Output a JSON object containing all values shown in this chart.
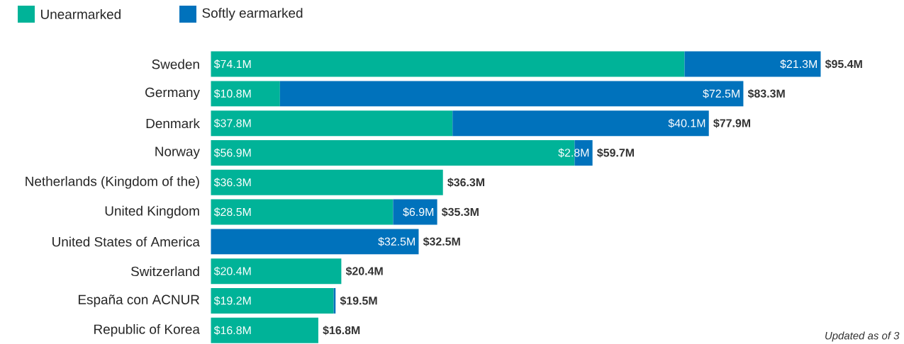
{
  "chart_data": {
    "type": "bar",
    "orientation": "horizontal",
    "stacked": true,
    "legend": "top left",
    "categories": [
      "Sweden",
      "Germany",
      "Denmark",
      "Norway",
      "Netherlands (Kingdom of the)",
      "United Kingdom",
      "United States of America",
      "Switzerland",
      "España con ACNUR",
      "Republic of Korea"
    ],
    "series": [
      {
        "name": "Unearmarked",
        "color": "#00b398",
        "values": [
          74.1,
          10.8,
          37.8,
          56.9,
          36.3,
          28.5,
          null,
          20.4,
          19.2,
          16.8
        ],
        "value_labels": [
          "$74.1M",
          "$10.8M",
          "$37.8M",
          "$56.9M",
          "$36.3M",
          "$28.5M",
          null,
          "$20.4M",
          "$19.2M",
          "$16.8M"
        ]
      },
      {
        "name": "Softly earmarked",
        "color": "#0072bc",
        "values": [
          21.3,
          72.5,
          40.1,
          2.8,
          null,
          6.9,
          32.5,
          null,
          0.3,
          null
        ],
        "value_labels": [
          "$21.3M",
          "$72.5M",
          "$40.1M",
          "$2.8M",
          null,
          "$6.9M",
          "$32.5M",
          null,
          null,
          null
        ]
      }
    ],
    "totals": [
      "$95.4M",
      "$83.3M",
      "$77.9M",
      "$59.7M",
      "$36.3M",
      "$35.3M",
      "$32.5M",
      "$20.4M",
      "$19.5M",
      "$16.8M"
    ],
    "annotations": [
      "Updated as of 3"
    ]
  }
}
